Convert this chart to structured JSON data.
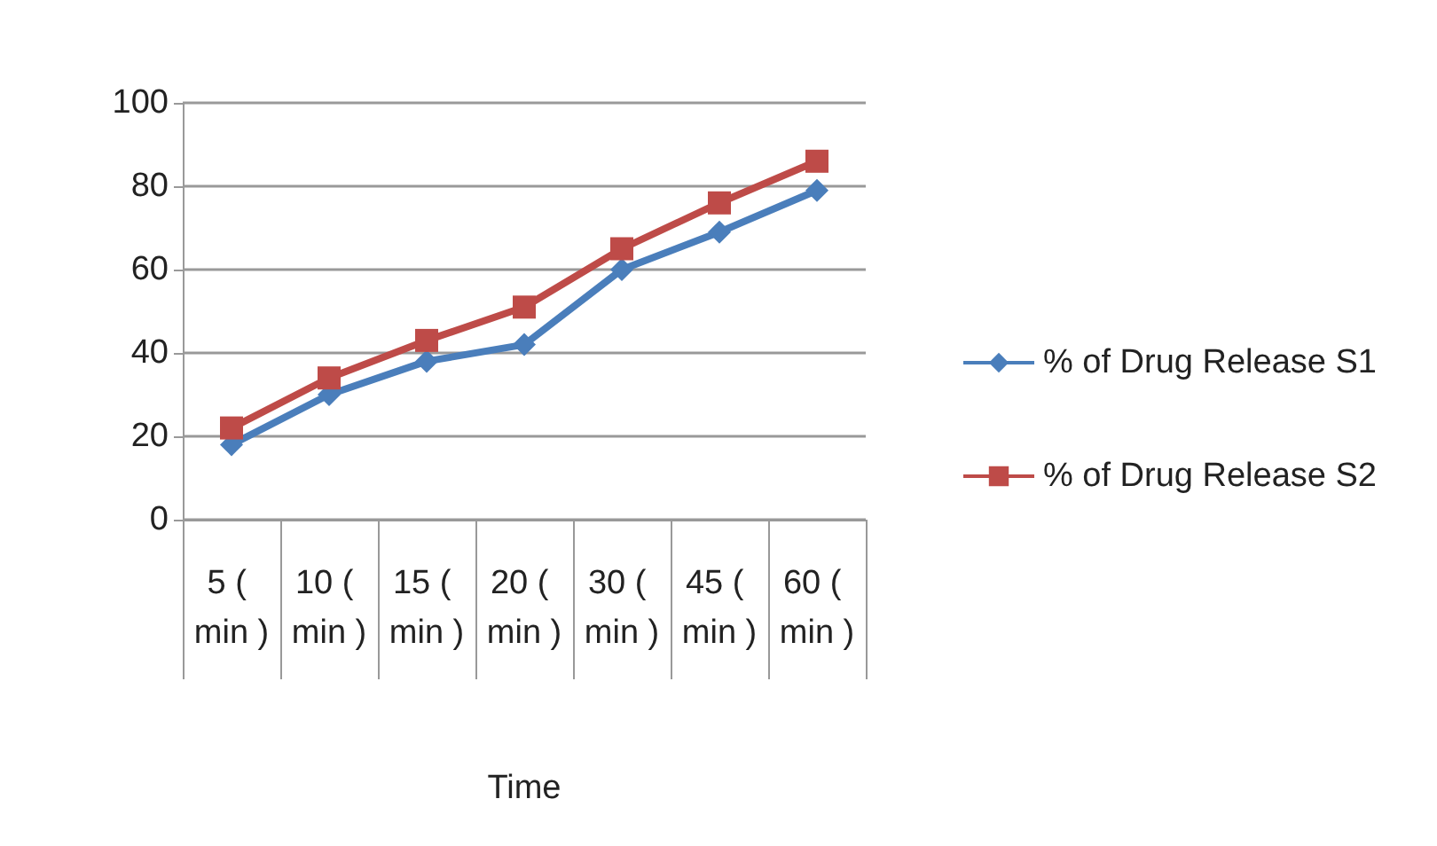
{
  "chart_data": {
    "type": "line",
    "xlabel": "Time",
    "categories": [
      "5 ( min )",
      "10 ( min )",
      "15 ( min )",
      "20 ( min )",
      "30 ( min )",
      "45 ( min )",
      "60 ( min )"
    ],
    "series": [
      {
        "name": "% of Drug Release S1",
        "color": "#4a7ebb",
        "marker": "diamond",
        "values": [
          18,
          30,
          38,
          42,
          60,
          69,
          79
        ]
      },
      {
        "name": "% of Drug Release S2",
        "color": "#be4b48",
        "marker": "square",
        "values": [
          22,
          34,
          43,
          51,
          65,
          76,
          86
        ]
      }
    ],
    "ylim": [
      0,
      100
    ],
    "yticks": [
      0,
      20,
      40,
      60,
      80,
      100
    ],
    "grid": "y",
    "legend": "right",
    "line_style": "solid"
  }
}
